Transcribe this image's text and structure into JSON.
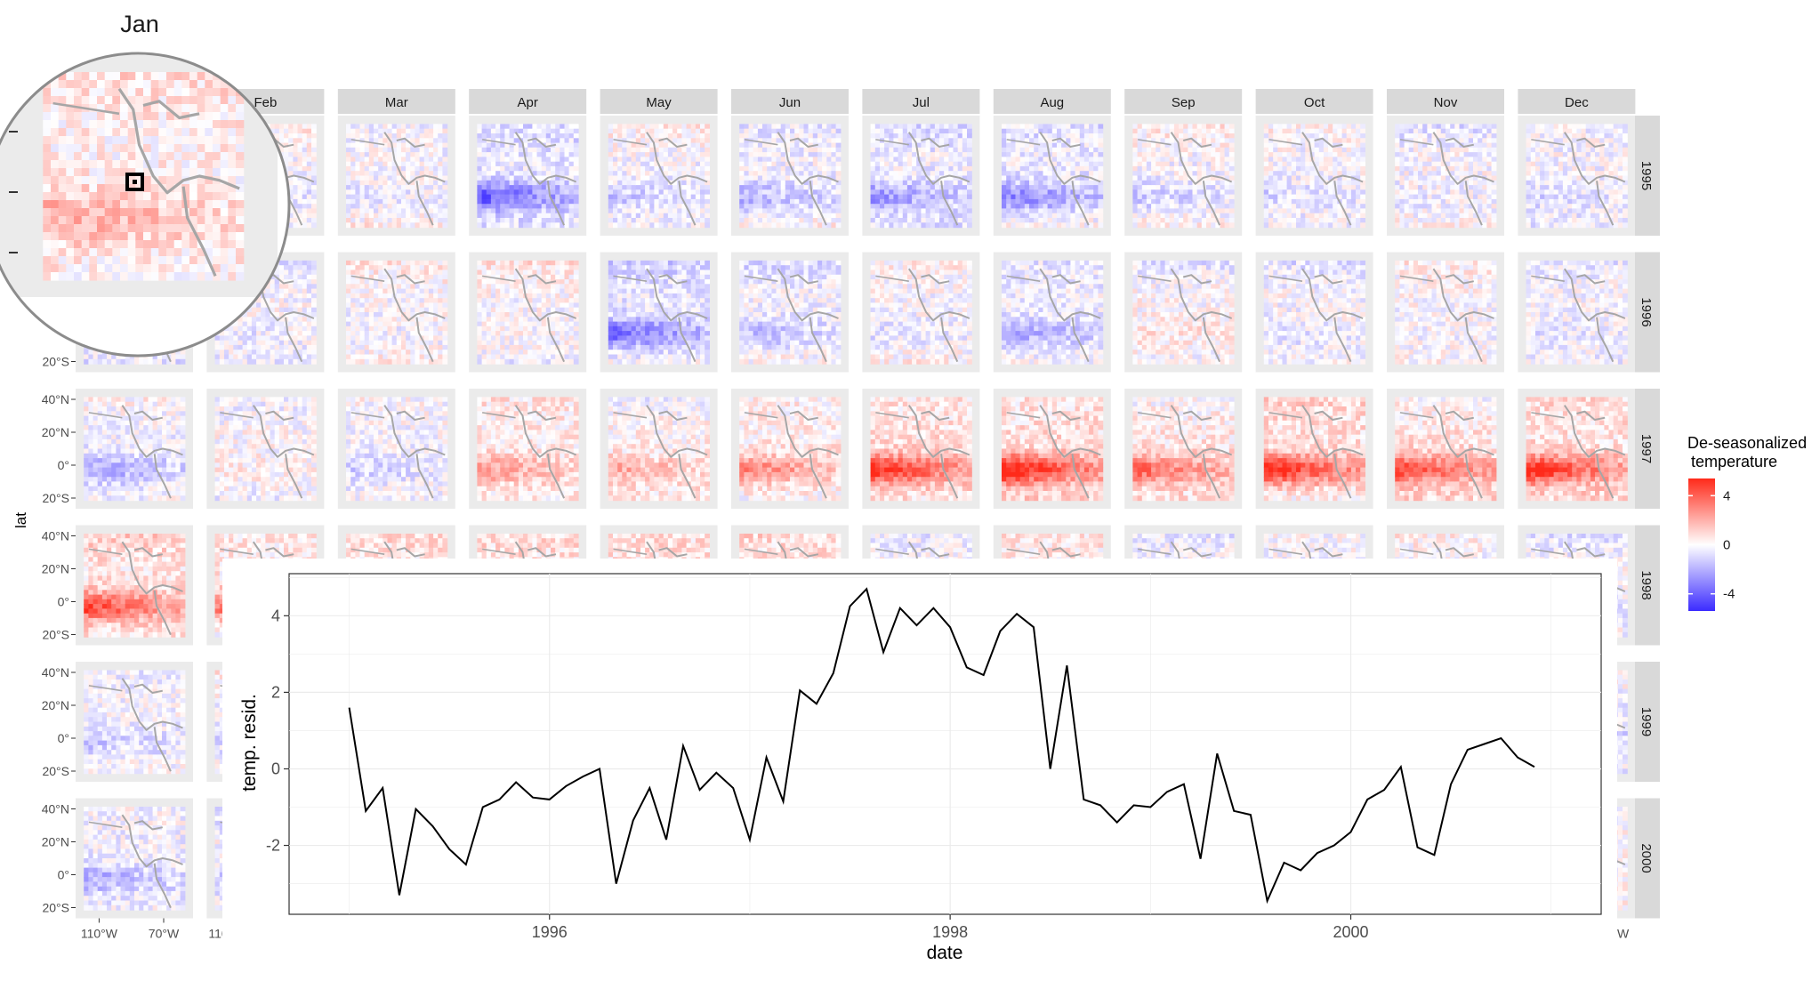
{
  "facet_grid": {
    "months": [
      "Jan",
      "Feb",
      "Mar",
      "Apr",
      "May",
      "Jun",
      "Jul",
      "Aug",
      "Sep",
      "Oct",
      "Nov",
      "Dec"
    ],
    "years": [
      "1995",
      "1996",
      "1997",
      "1998",
      "1999",
      "2000"
    ],
    "y_axis_label": "lat",
    "lat_ticks": [
      "40°N",
      "20°N",
      "0°",
      "20°S"
    ],
    "lon_ticks": [
      "110°W",
      "70°W"
    ],
    "partial_lon_tick": "110°",
    "partial_right_lon_tick": "W",
    "colors": {
      "low": "#3b2bff",
      "mid": "#ffffff",
      "high": "#ff2a1a",
      "strip": "#d9d9d9",
      "panel_bg": "#ebebeb",
      "coast": "#a6a6a6"
    }
  },
  "legend": {
    "title_line1": "De-seasonalized",
    "title_line2": "temperature",
    "tick_labels": [
      "4",
      "0",
      "-4"
    ],
    "tick_values": [
      4,
      0,
      -4
    ],
    "limits": [
      -5.4,
      5.4
    ]
  },
  "zoom": {
    "title": "Jan",
    "description_marker": "selected pixel"
  },
  "chart_data": {
    "type": "line",
    "xlabel": "date",
    "ylabel": "temp. resid.",
    "x_ticks": [
      "1996",
      "1998",
      "2000"
    ],
    "y_ticks": [
      "4",
      "2",
      "0",
      "-2"
    ],
    "xlim": [
      1994.7,
      2001.25
    ],
    "ylim": [
      -3.8,
      5.1
    ],
    "grid": true,
    "x": [
      1995.0,
      1995.083,
      1995.167,
      1995.25,
      1995.333,
      1995.417,
      1995.5,
      1995.583,
      1995.667,
      1995.75,
      1995.833,
      1995.917,
      1996.0,
      1996.083,
      1996.167,
      1996.25,
      1996.333,
      1996.417,
      1996.5,
      1996.583,
      1996.667,
      1996.75,
      1996.833,
      1996.917,
      1997.0,
      1997.083,
      1997.167,
      1997.25,
      1997.333,
      1997.417,
      1997.5,
      1997.583,
      1997.667,
      1997.75,
      1997.833,
      1997.917,
      1998.0,
      1998.083,
      1998.167,
      1998.25,
      1998.333,
      1998.417,
      1998.5,
      1998.583,
      1998.667,
      1998.75,
      1998.833,
      1998.917,
      1999.0,
      1999.083,
      1999.167,
      1999.25,
      1999.333,
      1999.417,
      1999.5,
      1999.583,
      1999.667,
      1999.75,
      1999.833,
      1999.917,
      2000.0,
      2000.083,
      2000.167,
      2000.25,
      2000.333,
      2000.417,
      2000.5,
      2000.583,
      2000.667,
      2000.75,
      2000.833,
      2000.917
    ],
    "y": [
      1.6,
      -1.1,
      -0.5,
      -3.3,
      -1.05,
      -1.5,
      -2.1,
      -2.5,
      -1.0,
      -0.8,
      -0.35,
      -0.75,
      -0.8,
      -0.45,
      -0.2,
      0.0,
      -3.0,
      -1.35,
      -0.5,
      -1.85,
      0.6,
      -0.55,
      -0.1,
      -0.5,
      -1.85,
      0.3,
      -0.85,
      2.05,
      1.7,
      2.5,
      4.25,
      4.7,
      3.05,
      4.2,
      3.75,
      4.2,
      3.7,
      2.65,
      2.45,
      3.6,
      4.05,
      3.7,
      0.0,
      2.7,
      -0.8,
      -0.95,
      -1.4,
      -0.95,
      -1.0,
      -0.6,
      -0.4,
      -2.35,
      0.4,
      -1.1,
      -1.2,
      -3.45,
      -2.45,
      -2.65,
      -2.2,
      -2.0,
      -1.65,
      -0.8,
      -0.55,
      0.05,
      -2.05,
      -2.25,
      -0.4,
      0.5,
      0.65,
      0.8,
      0.3,
      0.05
    ]
  }
}
